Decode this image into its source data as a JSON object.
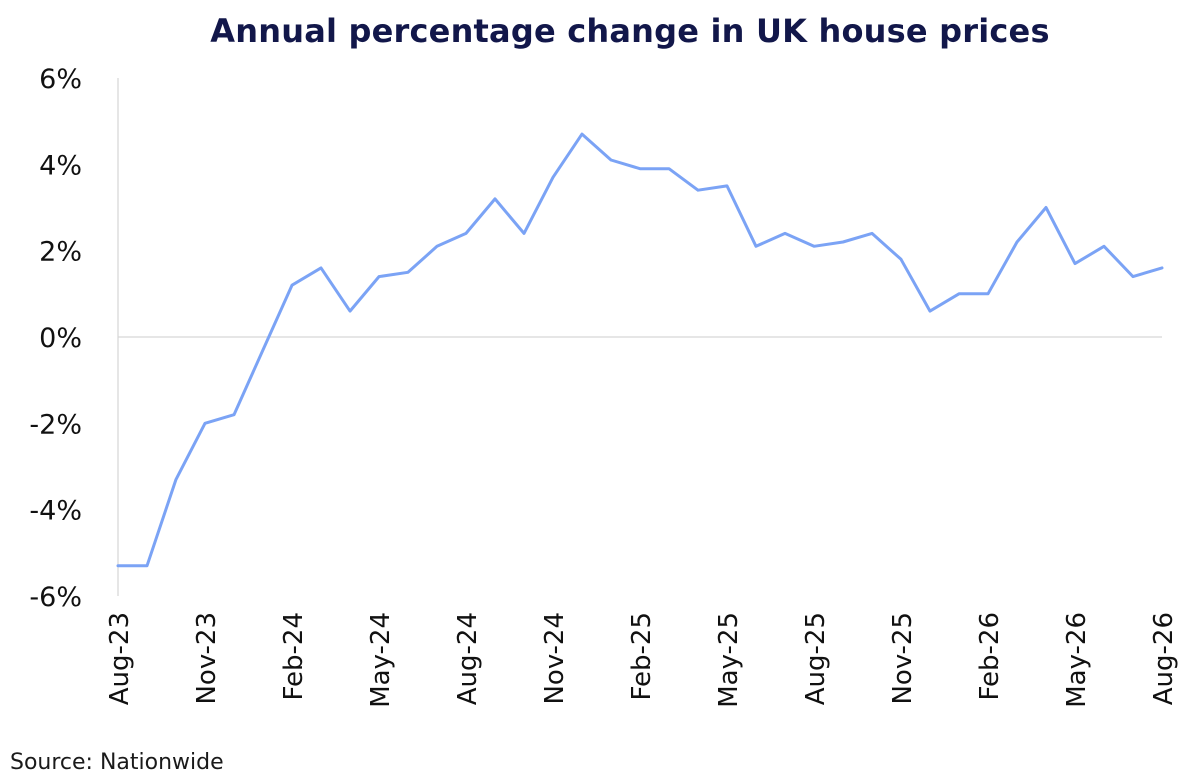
{
  "chart_data": {
    "type": "line",
    "title": "Annual percentage change in UK house prices",
    "xlabel": "",
    "ylabel": "",
    "ylim": [
      -6,
      6
    ],
    "y_ticks": [
      "6%",
      "4%",
      "2%",
      "0%",
      "-2%",
      "-4%",
      "-6%"
    ],
    "x_tick_labels": [
      "Aug-23",
      "Nov-23",
      "Feb-24",
      "May-24",
      "Aug-24",
      "Nov-24",
      "Feb-25",
      "May-25",
      "Aug-25",
      "Nov-25",
      "Feb-26",
      "May-26",
      "Aug-26"
    ],
    "x": [
      "Aug-23",
      "Sep-23",
      "Oct-23",
      "Nov-23",
      "Dec-23",
      "Jan-24",
      "Feb-24",
      "Mar-24",
      "Apr-24",
      "May-24",
      "Jun-24",
      "Jul-24",
      "Aug-24",
      "Sep-24",
      "Oct-24",
      "Nov-24",
      "Dec-24",
      "Jan-25",
      "Feb-25",
      "Mar-25",
      "Apr-25",
      "May-25",
      "Jun-25",
      "Jul-25",
      "Aug-25",
      "Sep-25",
      "Oct-25",
      "Nov-25",
      "Dec-25",
      "Jan-26",
      "Feb-26",
      "Mar-26",
      "Apr-26",
      "May-26",
      "Jun-26",
      "Jul-26",
      "Aug-26"
    ],
    "series": [
      {
        "values": [
          -5.3,
          -5.3,
          -3.3,
          -2.0,
          -1.8,
          -0.3,
          1.2,
          1.6,
          0.6,
          1.4,
          1.5,
          2.1,
          2.4,
          3.2,
          2.4,
          3.7,
          4.7,
          4.1,
          3.9,
          3.9,
          3.4,
          3.5,
          2.1,
          2.4,
          2.1,
          2.2,
          2.4,
          1.8,
          0.6,
          1.0,
          1.0,
          2.2,
          3.0,
          1.7,
          2.1,
          1.4,
          1.6
        ],
        "color": "#7ba3f5"
      }
    ],
    "grid": false,
    "zero_line": true,
    "legend": "none"
  },
  "source": "Source: Nationwide"
}
